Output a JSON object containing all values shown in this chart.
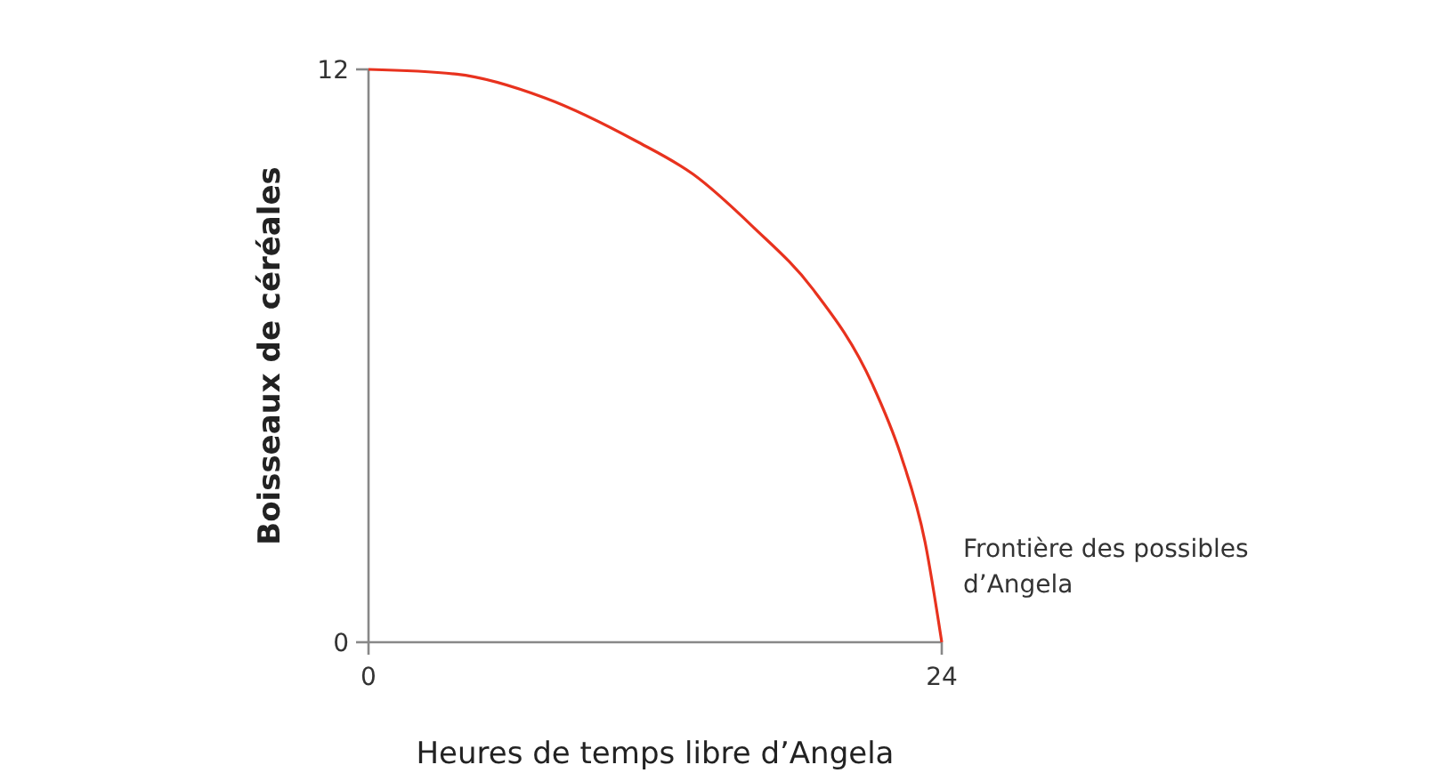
{
  "chart_data": {
    "type": "line",
    "xlabel": "Heures de temps libre d’Angela",
    "ylabel": "Boisseaux de céréales",
    "x": [
      0,
      3.7,
      7.4,
      11.2,
      13.6,
      16.1,
      18.6,
      21.1,
      22.3,
      23.3,
      24
    ],
    "series": [
      {
        "name": "Frontière des possibles d’Angela",
        "color": "#e8321e",
        "values": [
          12,
          11.9,
          11.4,
          10.5,
          9.8,
          8.7,
          7.4,
          5.4,
          3.9,
          2.1,
          0
        ]
      }
    ],
    "xlim": [
      0,
      24
    ],
    "ylim": [
      0,
      12
    ],
    "xticks": [
      0,
      24
    ],
    "yticks": [
      0,
      12
    ],
    "grid": false,
    "legend": false,
    "marker": "none",
    "line_style": "solid"
  }
}
